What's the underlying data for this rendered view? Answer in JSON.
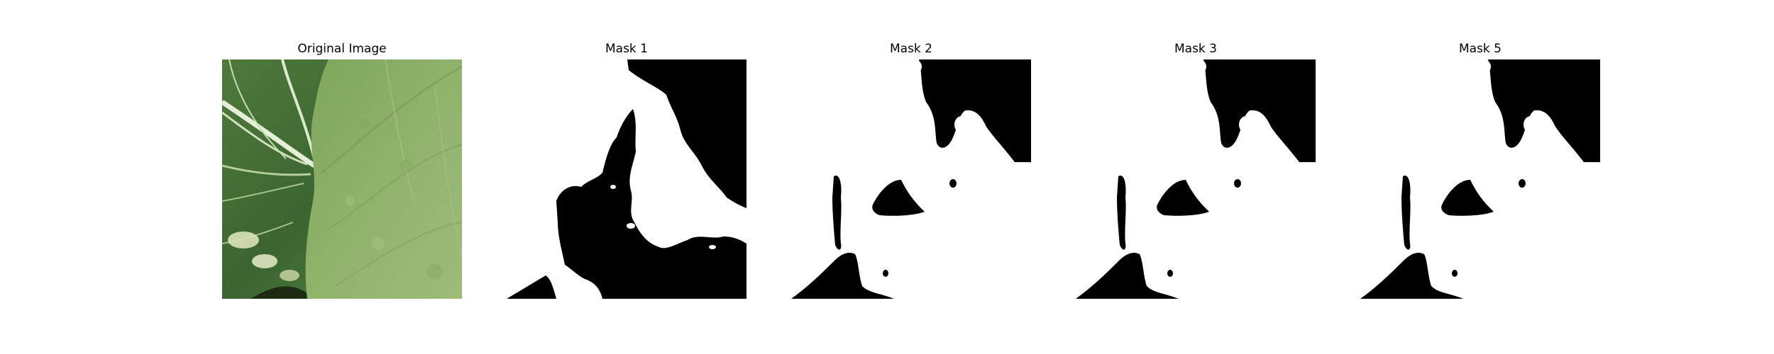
{
  "figure": {
    "panels": [
      {
        "title": "Original Image",
        "kind": "photo"
      },
      {
        "title": "Mask 1",
        "kind": "mask"
      },
      {
        "title": "Mask 2",
        "kind": "mask"
      },
      {
        "title": "Mask 3",
        "kind": "mask"
      },
      {
        "title": "Mask 5",
        "kind": "mask"
      }
    ]
  },
  "colors": {
    "mask_foreground": "#ffffff",
    "mask_background": "#000000",
    "leaf_light": "#8fb06a",
    "leaf_dark": "#3f6a32",
    "vein": "#d8e8c8"
  }
}
